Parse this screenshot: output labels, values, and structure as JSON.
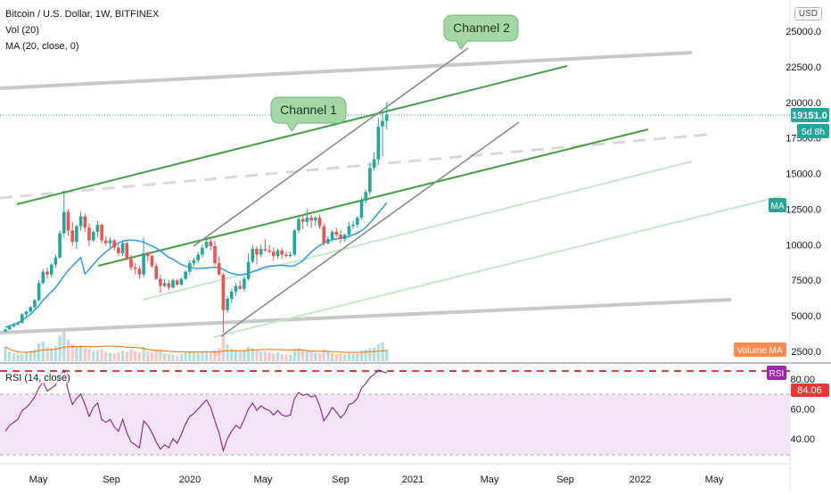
{
  "header": {
    "title": "Bitcoin / U.S. Dollar, 1W, BITFINEX",
    "vol_legend": "Vol (20)",
    "ma_legend": "MA (20, close, 0)",
    "currency_button": "USD"
  },
  "annotations": {
    "channel1": "Channel 1",
    "channel2": "Channel 2"
  },
  "badges": {
    "price": "19151.0",
    "countdown": "5d 8h",
    "ma": "MA",
    "volume_ma": "Volume MA",
    "rsi": "RSI",
    "rsi_value": "84.06"
  },
  "colors": {
    "up": "#26a69a",
    "down": "#ef5350",
    "ma": "#2196f3",
    "channel_green": "#43a047",
    "channel_gray": "#9e9e9e",
    "volume_ma": "#ff6d00",
    "rsi_line": "#8e1e8e",
    "rsi_band": "#f3e5f5"
  },
  "chart_data": [
    {
      "type": "candlestick",
      "title": "Bitcoin / U.S. Dollar, 1W, BITFINEX",
      "x_tick_labels": [
        "May",
        "Sep",
        "2020",
        "May",
        "Sep",
        "2021",
        "May",
        "Sep",
        "2022",
        "May"
      ],
      "y_tick_labels": [
        "2500.0",
        "5000.0",
        "7500.0",
        "10000.0",
        "12500.0",
        "15000.0",
        "17500.0",
        "20000.0",
        "22500.0",
        "25000.0"
      ],
      "ylim": [
        1300,
        26200
      ],
      "last_price": 19151.0,
      "grid": false,
      "ohlc_weekly": [
        [
          3900,
          4100,
          3850,
          4050
        ],
        [
          4050,
          4300,
          4000,
          4250
        ],
        [
          4250,
          4500,
          4200,
          4400
        ],
        [
          4400,
          4600,
          4300,
          4500
        ],
        [
          4500,
          5200,
          4450,
          5100
        ],
        [
          5100,
          5400,
          5000,
          5300
        ],
        [
          5300,
          5700,
          5200,
          5600
        ],
        [
          5600,
          6200,
          5500,
          6100
        ],
        [
          6100,
          7500,
          6000,
          7300
        ],
        [
          7300,
          8300,
          7200,
          8100
        ],
        [
          8100,
          8400,
          7600,
          7900
        ],
        [
          7900,
          8700,
          7700,
          8600
        ],
        [
          8600,
          9300,
          8400,
          9100
        ],
        [
          9100,
          11000,
          9000,
          10800
        ],
        [
          10800,
          13800,
          10500,
          12300
        ],
        [
          12300,
          12500,
          10600,
          11000
        ],
        [
          11000,
          11600,
          9900,
          10200
        ],
        [
          10200,
          11400,
          9700,
          11300
        ],
        [
          11300,
          12300,
          11000,
          12000
        ],
        [
          12000,
          12200,
          10900,
          11200
        ],
        [
          11200,
          11500,
          9900,
          10300
        ],
        [
          10300,
          11000,
          10200,
          10900
        ],
        [
          10900,
          11700,
          10500,
          11400
        ],
        [
          11400,
          11500,
          10100,
          10300
        ],
        [
          10300,
          10600,
          9900,
          10100
        ],
        [
          10100,
          10500,
          9800,
          10300
        ],
        [
          10300,
          10400,
          9600,
          9800
        ],
        [
          9800,
          10100,
          9200,
          9400
        ],
        [
          9400,
          10300,
          9200,
          10100
        ],
        [
          10100,
          10200,
          8900,
          9000
        ],
        [
          9000,
          9300,
          8200,
          8400
        ],
        [
          8400,
          8700,
          7900,
          8300
        ],
        [
          8300,
          8500,
          7600,
          7900
        ],
        [
          7900,
          10500,
          7700,
          9400
        ],
        [
          9400,
          9500,
          8800,
          9200
        ],
        [
          9200,
          9300,
          8400,
          8500
        ],
        [
          8500,
          8700,
          7500,
          7600
        ],
        [
          7600,
          7900,
          6600,
          7100
        ],
        [
          7100,
          7600,
          7000,
          7300
        ],
        [
          7300,
          7500,
          6800,
          7000
        ],
        [
          7000,
          7600,
          6900,
          7500
        ],
        [
          7500,
          7600,
          7100,
          7200
        ],
        [
          7200,
          7700,
          7100,
          7600
        ],
        [
          7600,
          8200,
          7500,
          8100
        ],
        [
          8100,
          8900,
          7900,
          8700
        ],
        [
          8700,
          9100,
          8500,
          8900
        ],
        [
          8900,
          9500,
          8700,
          9300
        ],
        [
          9300,
          10000,
          9100,
          9800
        ],
        [
          9800,
          10500,
          9700,
          10200
        ],
        [
          10200,
          10400,
          9600,
          9900
        ],
        [
          9900,
          10300,
          8500,
          8700
        ],
        [
          8700,
          9200,
          7800,
          7900
        ],
        [
          7900,
          8000,
          3800,
          5400
        ],
        [
          5400,
          6400,
          5200,
          6200
        ],
        [
          6200,
          6900,
          5900,
          6700
        ],
        [
          6700,
          7300,
          6400,
          7100
        ],
        [
          7100,
          7500,
          6800,
          6900
        ],
        [
          6900,
          7800,
          6700,
          7600
        ],
        [
          7600,
          9400,
          7500,
          8800
        ],
        [
          8800,
          10000,
          8700,
          9700
        ],
        [
          9700,
          9900,
          8600,
          9300
        ],
        [
          9300,
          10000,
          9100,
          9700
        ],
        [
          9700,
          10400,
          9500,
          9600
        ],
        [
          9600,
          10000,
          9400,
          9500
        ],
        [
          9500,
          9800,
          8900,
          9200
        ],
        [
          9200,
          9700,
          9000,
          9600
        ],
        [
          9600,
          9800,
          9000,
          9300
        ],
        [
          9300,
          9500,
          9100,
          9200
        ],
        [
          9200,
          9500,
          9100,
          9300
        ],
        [
          9300,
          11100,
          9200,
          11000
        ],
        [
          11000,
          12000,
          10800,
          11800
        ],
        [
          11800,
          12100,
          11100,
          11600
        ],
        [
          11600,
          12500,
          11300,
          11900
        ],
        [
          11900,
          12100,
          11200,
          11700
        ],
        [
          11700,
          12000,
          11300,
          11900
        ],
        [
          11900,
          12100,
          11100,
          11300
        ],
        [
          11300,
          11500,
          9900,
          10100
        ],
        [
          10100,
          10600,
          10000,
          10400
        ],
        [
          10400,
          11000,
          10200,
          10900
        ],
        [
          10900,
          11200,
          10500,
          10700
        ],
        [
          10700,
          11000,
          10100,
          10400
        ],
        [
          10400,
          10800,
          10200,
          10700
        ],
        [
          10700,
          11600,
          10500,
          11300
        ],
        [
          11300,
          11700,
          11100,
          11400
        ],
        [
          11400,
          12000,
          11200,
          11900
        ],
        [
          11900,
          13300,
          11800,
          13100
        ],
        [
          13100,
          13900,
          12900,
          13700
        ],
        [
          13700,
          15800,
          13500,
          15400
        ],
        [
          15400,
          16500,
          15200,
          16000
        ],
        [
          16000,
          18900,
          15700,
          18300
        ],
        [
          18300,
          19500,
          16200,
          18700
        ],
        [
          18700,
          20000,
          18100,
          19151
        ]
      ],
      "volume_weekly": [
        620,
        410,
        340,
        260,
        300,
        380,
        450,
        520,
        760,
        840,
        610,
        560,
        640,
        1100,
        1320,
        930,
        720,
        610,
        690,
        560,
        500,
        430,
        470,
        520,
        410,
        360,
        330,
        390,
        450,
        400,
        520,
        430,
        380,
        620,
        440,
        380,
        460,
        510,
        330,
        300,
        280,
        250,
        310,
        360,
        420,
        380,
        360,
        420,
        440,
        400,
        480,
        560,
        1150,
        720,
        540,
        460,
        430,
        470,
        640,
        560,
        460,
        430,
        420,
        380,
        340,
        360,
        310,
        290,
        270,
        540,
        560,
        470,
        480,
        420,
        360,
        350,
        520,
        410,
        350,
        300,
        330,
        290,
        340,
        310,
        330,
        470,
        500,
        560,
        590,
        730,
        810,
        520
      ],
      "ma20_start": [
        4200,
        4300,
        4400,
        4500,
        4700,
        4900,
        5100,
        5400,
        5700,
        6100,
        6400,
        6700,
        7000,
        7400,
        7800,
        8200,
        8500,
        8800,
        9100,
        9300
      ],
      "ma_label": "MA (20, close, 0)",
      "vol_label": "Vol (20)"
    },
    {
      "type": "line",
      "title": "RSI (14, close)",
      "y_tick_labels": [
        "40.00",
        "60.00",
        "80.00"
      ],
      "ylim": [
        27,
        87
      ],
      "overbought": 80,
      "oversold": 30,
      "last_value": 84.06,
      "values_weekly": [
        45,
        49,
        51,
        53,
        59,
        61,
        64,
        68,
        74,
        78,
        72,
        74,
        76,
        82,
        86,
        72,
        63,
        67,
        70,
        63,
        55,
        61,
        64,
        53,
        51,
        53,
        48,
        45,
        53,
        44,
        38,
        36,
        34,
        52,
        49,
        44,
        38,
        33,
        36,
        34,
        40,
        37,
        43,
        50,
        55,
        57,
        60,
        63,
        66,
        61,
        52,
        44,
        32,
        40,
        45,
        49,
        47,
        53,
        60,
        64,
        59,
        62,
        60,
        59,
        56,
        59,
        56,
        55,
        56,
        67,
        71,
        69,
        70,
        68,
        69,
        62,
        52,
        56,
        61,
        58,
        54,
        57,
        63,
        64,
        67,
        74,
        77,
        81,
        83,
        86,
        85,
        84.06
      ]
    }
  ]
}
